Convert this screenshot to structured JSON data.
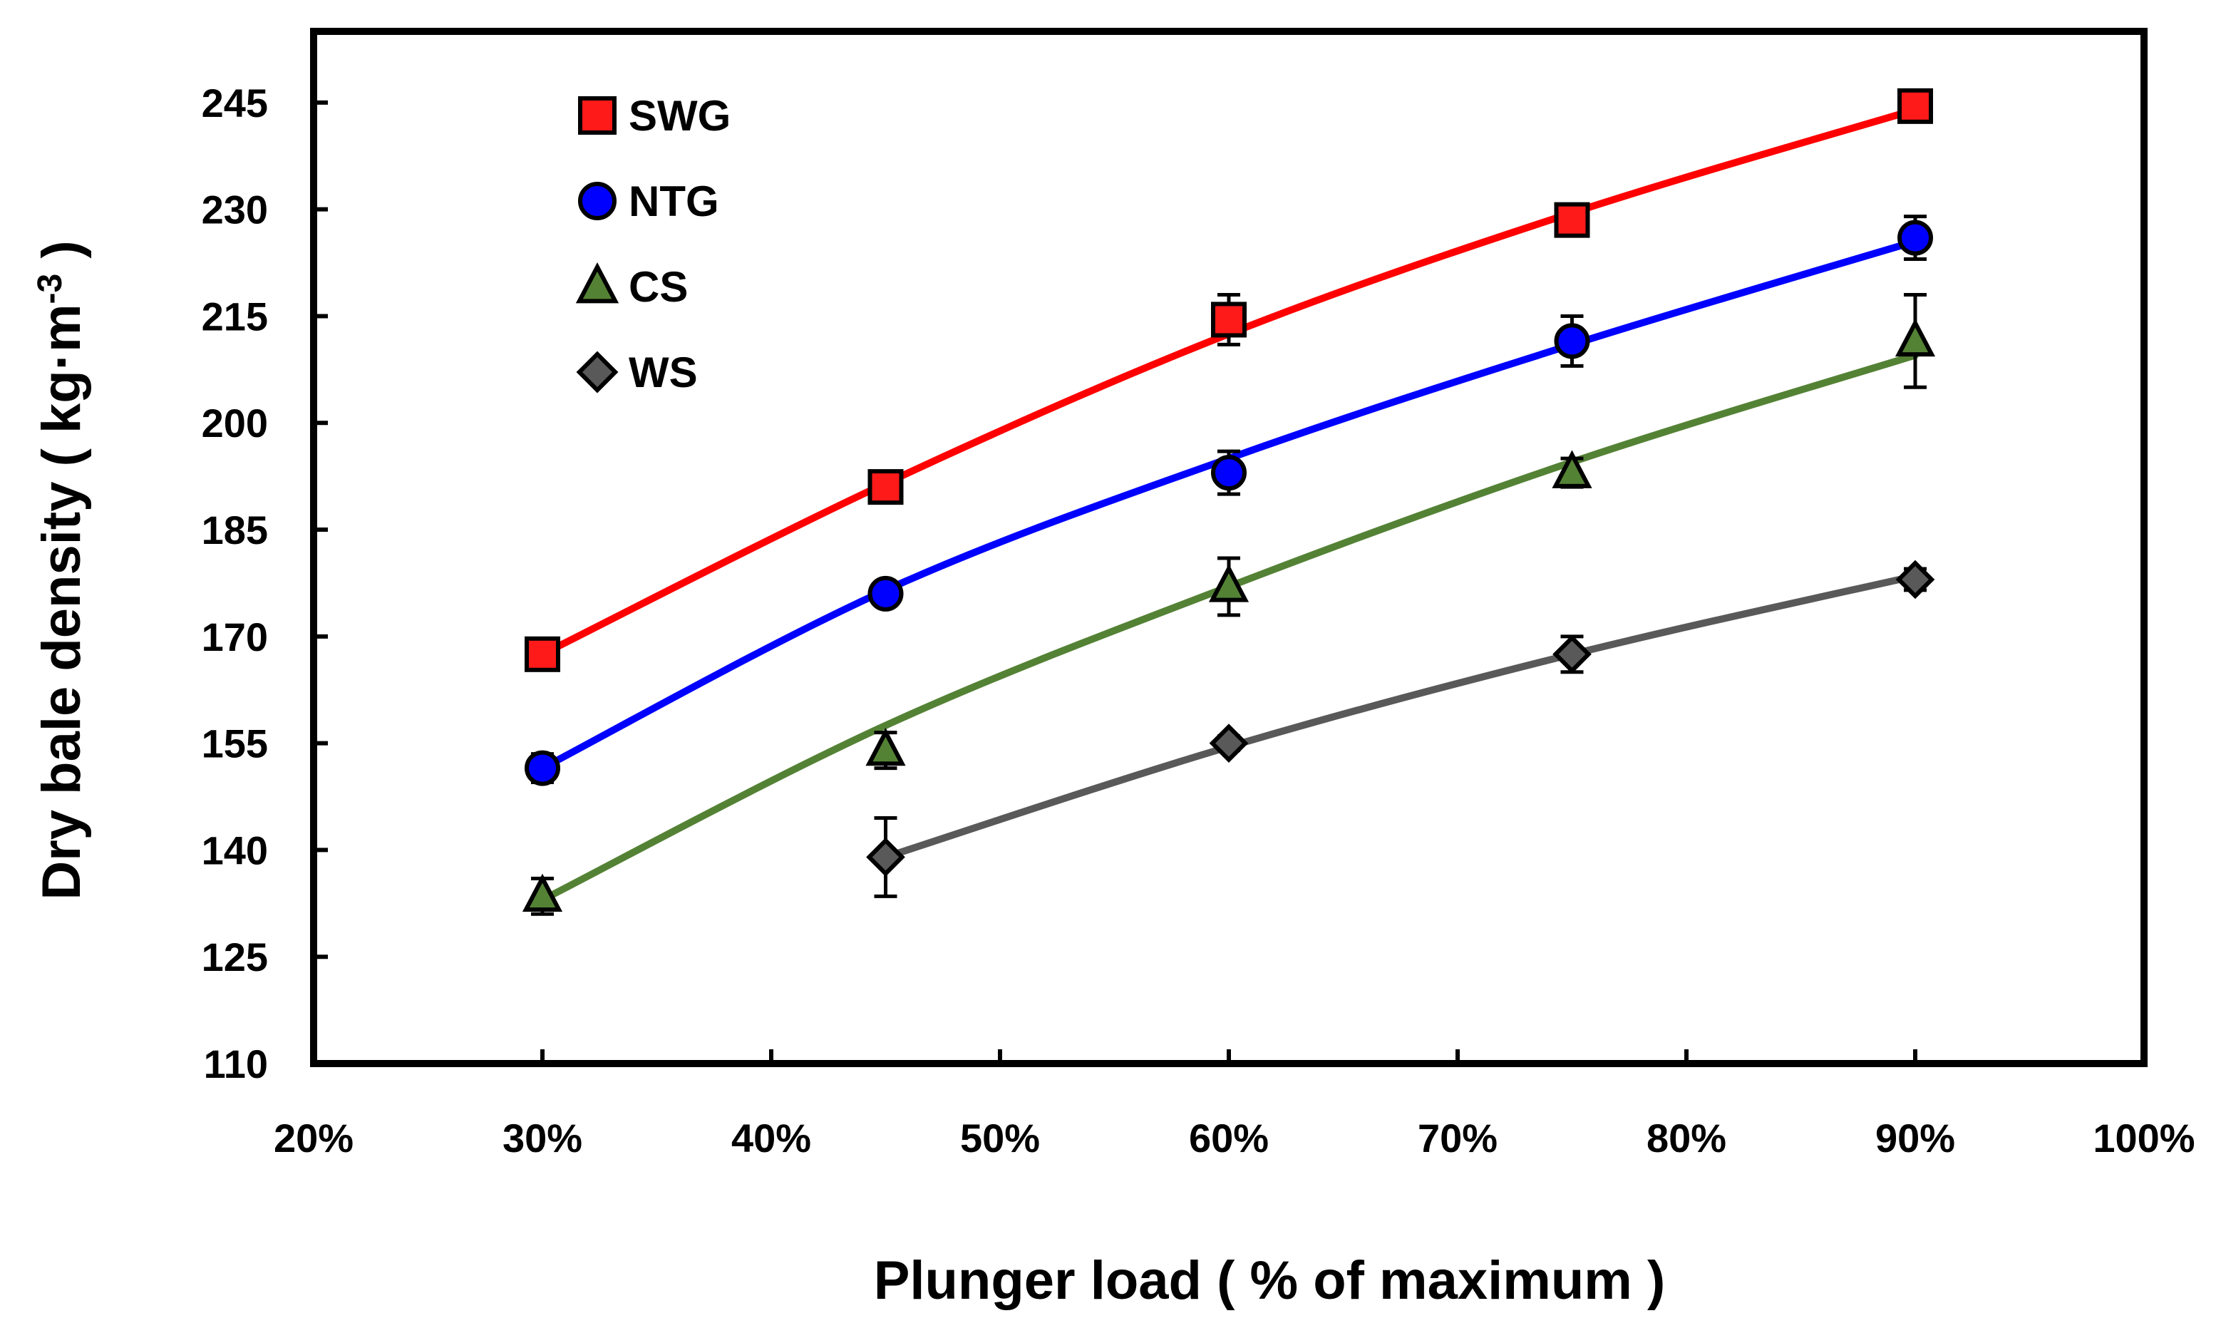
{
  "chart_data": {
    "type": "line",
    "title": "",
    "xlabel": "Plunger load ( % of maximum )",
    "ylabel_main": "Dry bale density ( kg·m",
    "ylabel_sup": "-3",
    "ylabel_close": " )",
    "xlim": [
      20,
      100
    ],
    "ylim": [
      110,
      255
    ],
    "x_ticks": [
      20,
      30,
      40,
      50,
      60,
      70,
      80,
      90,
      100
    ],
    "x_tick_labels": [
      "20%",
      "30%",
      "40%",
      "50%",
      "60%",
      "70%",
      "80%",
      "90%",
      "100%"
    ],
    "y_ticks": [
      110,
      125,
      140,
      155,
      170,
      185,
      200,
      215,
      230,
      245
    ],
    "y_tick_labels": [
      "110",
      "125",
      "140",
      "155",
      "170",
      "185",
      "200",
      "215",
      "230",
      "245"
    ],
    "grid": false,
    "legend_position": "top-left",
    "series": [
      {
        "name": "SWG",
        "marker": "square",
        "color": "#ff1a1a",
        "line_color": "#ff0000",
        "x": [
          30,
          45,
          60,
          75,
          90
        ],
        "values": [
          167.5,
          191,
          214.5,
          228.5,
          244.5
        ],
        "error": [
          1.0,
          1.5,
          3.5,
          1.5,
          1.5
        ],
        "fit": [
          167.5,
          191.5,
          212.5,
          229.5,
          244
        ]
      },
      {
        "name": "NTG",
        "marker": "circle",
        "color": "#0000ff",
        "line_color": "#0000ff",
        "x": [
          30,
          45,
          60,
          75,
          90
        ],
        "values": [
          151.5,
          176,
          193,
          211.5,
          226
        ],
        "error": [
          2.0,
          1.0,
          3.0,
          3.5,
          3.0
        ],
        "fit": [
          151.5,
          176.5,
          195,
          211,
          225.5
        ]
      },
      {
        "name": "CS",
        "marker": "triangle",
        "color": "#548235",
        "line_color": "#548235",
        "x": [
          30,
          45,
          60,
          75,
          90
        ],
        "values": [
          133.5,
          154,
          177,
          193,
          211.5
        ],
        "error": [
          2.5,
          2.5,
          4.0,
          2.0,
          6.5
        ],
        "fit": [
          133,
          157.5,
          177,
          194.5,
          209.5
        ]
      },
      {
        "name": "WS",
        "marker": "diamond",
        "color": "#595959",
        "line_color": "#595959",
        "x": [
          45,
          60,
          75,
          90
        ],
        "values": [
          139,
          155,
          167.5,
          178
        ],
        "error": [
          5.5,
          1.0,
          2.5,
          1.5
        ],
        "fit": [
          139,
          154.5,
          167.5,
          178.5
        ]
      }
    ]
  }
}
